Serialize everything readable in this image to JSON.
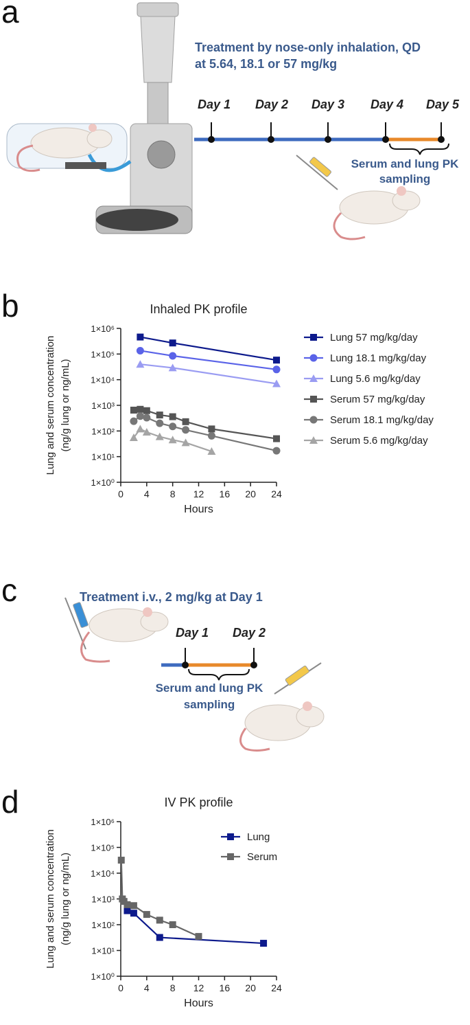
{
  "panels": {
    "a": "a",
    "b": "b",
    "c": "c",
    "d": "d"
  },
  "timeline_a": {
    "title_line1": "Treatment by nose-only inhalation, QD",
    "title_line2": "at 5.64, 18.1 or 57 mg/kg",
    "days": [
      "Day 1",
      "Day 2",
      "Day 3",
      "Day 4",
      "Day 5"
    ],
    "sampling_line1": "Serum and lung PK",
    "sampling_line2": "sampling"
  },
  "timeline_c": {
    "title": "Treatment i.v., 2 mg/kg at Day 1",
    "days": [
      "Day 1",
      "Day 2"
    ],
    "sampling_line1": "Serum and lung PK",
    "sampling_line2": "sampling"
  },
  "colors": {
    "navy": "#0d1a8c",
    "blue": "#5a63e8",
    "lightblue": "#9a9cf2",
    "darkgray": "#555555",
    "midgray": "#777777",
    "lightgray": "#a5a5a5",
    "timeline_blue": "#3e6bbf",
    "timeline_orange": "#e8892a"
  },
  "chart_data": [
    {
      "type": "line",
      "title": "Inhaled PK profile",
      "xlabel": "Hours",
      "ylabel_line1": "Lung and serum concentration",
      "ylabel_line2": "(ng/g lung or ng/mL)",
      "xlim": [
        0,
        24
      ],
      "ylim_log10": [
        0,
        6
      ],
      "xticks": [
        "0",
        "4",
        "8",
        "12",
        "16",
        "20",
        "24"
      ],
      "yticks": [
        "1×10⁰",
        "1×10¹",
        "1×10²",
        "1×10³",
        "1×10⁴",
        "1×10⁵",
        "1×10⁶"
      ],
      "legend_position": "right",
      "series": [
        {
          "name": "Lung  57 mg/kg/day",
          "color": "#0d1a8c",
          "marker": "square",
          "x": [
            3,
            8,
            24
          ],
          "y": [
            460000,
            270000,
            58000
          ]
        },
        {
          "name": "Lung 18.1 mg/kg/day",
          "color": "#5a63e8",
          "marker": "circle",
          "x": [
            3,
            8,
            24
          ],
          "y": [
            135000,
            85000,
            25000
          ]
        },
        {
          "name": "Lung 5.6 mg/kg/day",
          "color": "#9a9cf2",
          "marker": "triangle",
          "x": [
            3,
            8,
            24
          ],
          "y": [
            40000,
            29000,
            7000
          ]
        },
        {
          "name": "Serum  57 mg/kg/day",
          "color": "#555555",
          "marker": "square",
          "x": [
            2,
            3,
            4,
            6,
            8,
            10,
            14,
            24
          ],
          "y": [
            650,
            700,
            620,
            420,
            360,
            230,
            120,
            50
          ]
        },
        {
          "name": "Serum 18.1 mg/kg/day",
          "color": "#777777",
          "marker": "circle",
          "x": [
            2,
            3,
            4,
            6,
            8,
            10,
            14,
            24
          ],
          "y": [
            240,
            380,
            330,
            200,
            150,
            110,
            65,
            17
          ]
        },
        {
          "name": "Serum 5.6 mg/kg/day",
          "color": "#a5a5a5",
          "marker": "triangle",
          "x": [
            2,
            3,
            4,
            6,
            8,
            10,
            14
          ],
          "y": [
            55,
            120,
            90,
            60,
            45,
            35,
            16
          ]
        }
      ]
    },
    {
      "type": "line",
      "title": "IV PK profile",
      "xlabel": "Hours",
      "ylabel_line1": "Lung and serum concentration",
      "ylabel_line2": "(ng/g lung or ng/mL)",
      "xlim": [
        0,
        24
      ],
      "ylim_log10": [
        0,
        6
      ],
      "xticks": [
        "0",
        "4",
        "8",
        "12",
        "16",
        "20",
        "24"
      ],
      "yticks": [
        "1×10⁰",
        "1×10¹",
        "1×10²",
        "1×10³",
        "1×10⁴",
        "1×10⁵",
        "1×10⁶"
      ],
      "legend_position": "top-right",
      "series": [
        {
          "name": "Lung",
          "color": "#0d1a8c",
          "marker": "square",
          "x": [
            1,
            2,
            6,
            22
          ],
          "y": [
            350,
            280,
            32,
            19
          ]
        },
        {
          "name": "Serum",
          "color": "#666666",
          "marker": "square",
          "x": [
            0.08,
            0.25,
            0.5,
            1,
            2,
            4,
            6,
            8,
            12
          ],
          "y": [
            32000,
            1000,
            800,
            600,
            550,
            250,
            150,
            100,
            35
          ]
        }
      ]
    }
  ]
}
